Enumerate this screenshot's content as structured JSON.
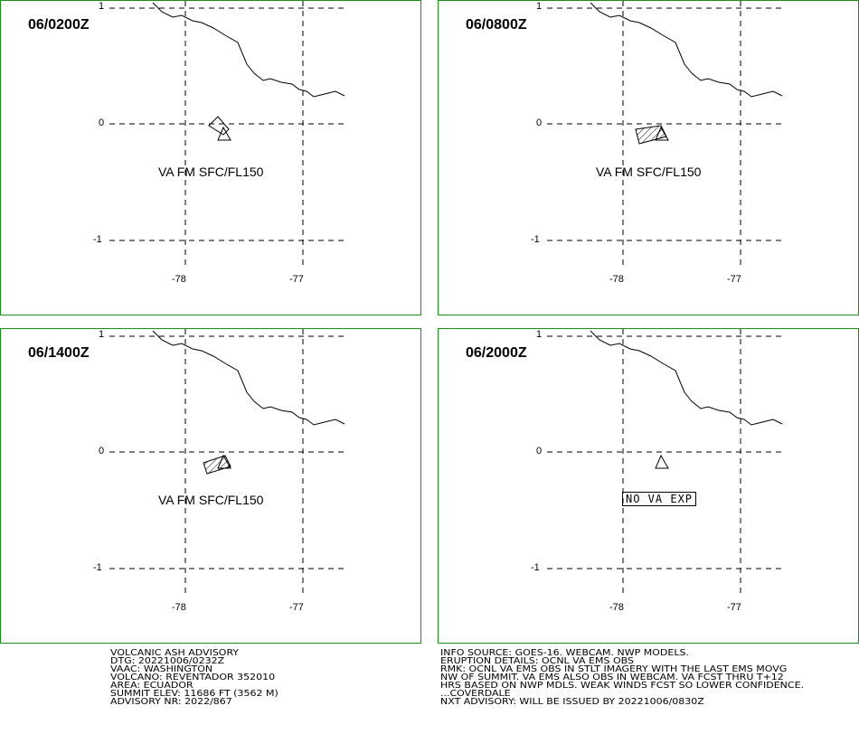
{
  "panels": [
    {
      "time": "06/0200Z",
      "label": "VA FM SFC/FL150",
      "no_va": ""
    },
    {
      "time": "06/0800Z",
      "label": "VA FM SFC/FL150",
      "no_va": ""
    },
    {
      "time": "06/1400Z",
      "label": "VA FM SFC/FL150",
      "no_va": ""
    },
    {
      "time": "06/2000Z",
      "label": "",
      "no_va": "NO VA EXP"
    }
  ],
  "axes": {
    "lat_ticks": [
      "1",
      "0",
      "-1"
    ],
    "lon_ticks": [
      "-78",
      "-77"
    ]
  },
  "advisory_left": [
    "VOLCANIC ASH ADVISORY",
    "DTG: 20221006/0232Z",
    "VAAC: WASHINGTON",
    "VOLCANO: REVENTADOR 352010",
    "AREA: ECUADOR",
    "SUMMIT ELEV: 11686 FT (3562 M)",
    "ADVISORY NR: 2022/867"
  ],
  "advisory_right": [
    "INFO SOURCE: GOES-16. WEBCAM. NWP MODELS.",
    "ERUPTION DETAILS: OCNL VA EMS OBS",
    "RMK: OCNL VA EMS OBS IN STLT IMAGERY WITH THE LAST EMS MOVG",
    "NW OF SUMMIT. VA EMS ALSO OBS IN WEBCAM. VA FCST THRU T+12",
    "HRS BASED ON NWP MDLS. WEAK WINDS FCST SO LOWER CONFIDENCE.",
    "...COVERDALE",
    "NXT ADVISORY: WILL BE ISSUED BY 20221006/0830Z"
  ],
  "colors": {
    "frame": "#1a8c1a",
    "lines": "#000000"
  }
}
